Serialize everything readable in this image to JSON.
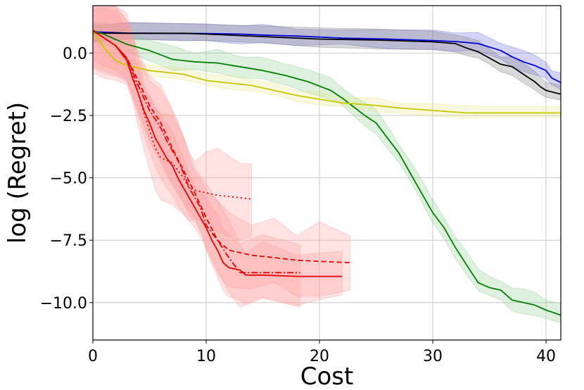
{
  "chart_data": {
    "type": "line",
    "title": "",
    "xlabel": "Cost",
    "ylabel": "log (Regret)",
    "xlim": [
      0,
      41.3
    ],
    "ylim": [
      -11.5,
      1.9
    ],
    "xticks": [
      0,
      10,
      20,
      30,
      40
    ],
    "yticks": [
      0.0,
      -2.5,
      -5.0,
      -7.5,
      -10.0
    ],
    "xtick_labels": [
      "0",
      "10",
      "20",
      "30",
      "40"
    ],
    "ytick_labels": [
      "0.0",
      "−2.5",
      "−5.0",
      "−7.5",
      "−10.0"
    ],
    "grid": true,
    "legend": null,
    "series": [
      {
        "name": "blue",
        "color": "#0000dd",
        "band_color": "#6666dd",
        "linestyle": "solid",
        "points": [
          [
            0,
            0.85
          ],
          [
            3,
            0.8
          ],
          [
            10,
            0.78
          ],
          [
            13,
            0.76
          ],
          [
            15,
            0.72
          ],
          [
            18,
            0.68
          ],
          [
            22,
            0.6
          ],
          [
            26,
            0.56
          ],
          [
            30,
            0.5
          ],
          [
            32,
            0.46
          ],
          [
            34,
            0.38
          ],
          [
            36,
            0.1
          ],
          [
            37,
            -0.15
          ],
          [
            38,
            -0.35
          ],
          [
            39,
            -0.5
          ],
          [
            40,
            -0.7
          ],
          [
            40.5,
            -1.0
          ],
          [
            41.3,
            -1.18
          ]
        ],
        "band": [
          0.4,
          0.45
        ]
      },
      {
        "name": "black",
        "color": "#000000",
        "band_color": "#777777",
        "linestyle": "solid",
        "points": [
          [
            0,
            0.8
          ],
          [
            3,
            0.79
          ],
          [
            8,
            0.79
          ],
          [
            10,
            0.76
          ],
          [
            15,
            0.66
          ],
          [
            20,
            0.56
          ],
          [
            25,
            0.52
          ],
          [
            30,
            0.45
          ],
          [
            32,
            0.38
          ],
          [
            33,
            0.2
          ],
          [
            34,
            0.05
          ],
          [
            35,
            -0.2
          ],
          [
            36,
            -0.45
          ],
          [
            37,
            -0.55
          ],
          [
            38,
            -0.85
          ],
          [
            39,
            -1.15
          ],
          [
            39.5,
            -1.35
          ],
          [
            40,
            -1.5
          ],
          [
            41.3,
            -1.65
          ]
        ],
        "band": [
          0.35,
          0.45
        ]
      },
      {
        "name": "green",
        "color": "#008000",
        "band_color": "#88cc88",
        "linestyle": "solid",
        "points": [
          [
            0,
            0.9
          ],
          [
            1,
            0.75
          ],
          [
            2,
            0.55
          ],
          [
            3,
            0.35
          ],
          [
            5,
            0.1
          ],
          [
            7,
            -0.25
          ],
          [
            9,
            -0.35
          ],
          [
            11,
            -0.4
          ],
          [
            13,
            -0.55
          ],
          [
            15,
            -0.7
          ],
          [
            17,
            -0.9
          ],
          [
            19,
            -1.15
          ],
          [
            21,
            -1.5
          ],
          [
            22,
            -1.8
          ],
          [
            23,
            -2.15
          ],
          [
            24,
            -2.5
          ],
          [
            25,
            -2.8
          ],
          [
            26,
            -3.4
          ],
          [
            27,
            -4.0
          ],
          [
            28,
            -4.8
          ],
          [
            29,
            -5.6
          ],
          [
            30,
            -6.4
          ],
          [
            31,
            -7.0
          ],
          [
            32,
            -7.8
          ],
          [
            33,
            -8.5
          ],
          [
            34,
            -9.2
          ],
          [
            35,
            -9.4
          ],
          [
            36,
            -9.5
          ],
          [
            37,
            -9.9
          ],
          [
            38,
            -10.0
          ],
          [
            39,
            -10.1
          ],
          [
            40,
            -10.3
          ],
          [
            41.3,
            -10.5
          ]
        ],
        "band": [
          0.45,
          0.55
        ]
      },
      {
        "name": "yellow",
        "color": "#c8c800",
        "band_color": "#e6e688",
        "linestyle": "solid",
        "points": [
          [
            0,
            0.9
          ],
          [
            1,
            0.2
          ],
          [
            2,
            -0.3
          ],
          [
            3,
            -0.5
          ],
          [
            5,
            -0.7
          ],
          [
            8,
            -0.85
          ],
          [
            10,
            -1.1
          ],
          [
            12,
            -1.2
          ],
          [
            14,
            -1.3
          ],
          [
            16,
            -1.5
          ],
          [
            18,
            -1.7
          ],
          [
            20,
            -1.85
          ],
          [
            22,
            -2.0
          ],
          [
            25,
            -2.1
          ],
          [
            27,
            -2.2
          ],
          [
            30,
            -2.3
          ],
          [
            33,
            -2.4
          ],
          [
            35,
            -2.4
          ],
          [
            41.3,
            -2.4
          ]
        ],
        "band": [
          0.25,
          0.3
        ]
      },
      {
        "name": "red-dotted",
        "color": "#ee0000",
        "band_color": "#ff9999",
        "linestyle": "dotted",
        "points": [
          [
            0,
            0.9
          ],
          [
            1,
            0.6
          ],
          [
            2,
            0.3
          ],
          [
            3,
            -0.2
          ],
          [
            3.5,
            -0.8
          ],
          [
            4,
            -1.6
          ],
          [
            4.5,
            -2.4
          ],
          [
            5,
            -3.1
          ],
          [
            5.5,
            -3.8
          ],
          [
            6,
            -4.2
          ],
          [
            7,
            -4.4
          ],
          [
            7.5,
            -4.7
          ],
          [
            8,
            -5.0
          ],
          [
            8.5,
            -5.4
          ],
          [
            9,
            -5.5
          ],
          [
            10,
            -5.6
          ],
          [
            11,
            -5.7
          ],
          [
            13,
            -5.8
          ],
          [
            14,
            -5.85
          ]
        ],
        "band": [
          1.7,
          1.9
        ]
      },
      {
        "name": "red-dashdot",
        "color": "#ee0000",
        "band_color": "#ff9999",
        "linestyle": "dashdot",
        "points": [
          [
            0,
            0.9
          ],
          [
            1,
            0.6
          ],
          [
            2,
            0.3
          ],
          [
            3,
            -0.2
          ],
          [
            4,
            -1.3
          ],
          [
            5,
            -2.3
          ],
          [
            6,
            -3.0
          ],
          [
            6.5,
            -3.5
          ],
          [
            7,
            -3.9
          ],
          [
            7.5,
            -4.3
          ],
          [
            8,
            -4.8
          ],
          [
            8.5,
            -5.4
          ],
          [
            9,
            -5.8
          ],
          [
            9.5,
            -6.2
          ],
          [
            10,
            -6.9
          ],
          [
            11,
            -7.5
          ],
          [
            12,
            -8.2
          ],
          [
            13,
            -8.8
          ],
          [
            15,
            -8.8
          ],
          [
            18.3,
            -8.8
          ]
        ],
        "band": [
          1.4,
          1.6
        ]
      },
      {
        "name": "red-dashed",
        "color": "#ee0000",
        "band_color": "#ff9999",
        "linestyle": "dashed",
        "points": [
          [
            0,
            0.9
          ],
          [
            1,
            0.6
          ],
          [
            2,
            0.3
          ],
          [
            3,
            -0.2
          ],
          [
            4,
            -1.1
          ],
          [
            5,
            -2.1
          ],
          [
            6,
            -2.8
          ],
          [
            7,
            -3.8
          ],
          [
            8,
            -4.7
          ],
          [
            9,
            -5.6
          ],
          [
            10,
            -6.6
          ],
          [
            11,
            -7.5
          ],
          [
            12,
            -7.9
          ],
          [
            14,
            -8.1
          ],
          [
            16,
            -8.2
          ],
          [
            18,
            -8.3
          ],
          [
            20,
            -8.35
          ],
          [
            22.7,
            -8.4
          ]
        ],
        "band": [
          1.5,
          1.6
        ]
      },
      {
        "name": "red-solid",
        "color": "#ee0000",
        "band_color": "#ff9999",
        "linestyle": "solid",
        "points": [
          [
            0,
            0.9
          ],
          [
            1,
            0.6
          ],
          [
            2,
            0.3
          ],
          [
            3,
            -0.3
          ],
          [
            3.5,
            -1.0
          ],
          [
            4,
            -1.6
          ],
          [
            4.5,
            -2.3
          ],
          [
            5,
            -2.8
          ],
          [
            5.5,
            -3.4
          ],
          [
            6,
            -3.8
          ],
          [
            6.5,
            -4.2
          ],
          [
            7,
            -4.5
          ],
          [
            7.5,
            -5.0
          ],
          [
            8,
            -5.4
          ],
          [
            8.5,
            -5.8
          ],
          [
            9,
            -6.2
          ],
          [
            9.5,
            -6.6
          ],
          [
            10,
            -7.0
          ],
          [
            10.5,
            -7.5
          ],
          [
            11,
            -7.9
          ],
          [
            11.5,
            -8.4
          ],
          [
            12,
            -8.6
          ],
          [
            13,
            -8.7
          ],
          [
            13.5,
            -8.9
          ],
          [
            15,
            -8.9
          ],
          [
            18,
            -8.95
          ],
          [
            22,
            -8.95
          ]
        ],
        "band": [
          1.2,
          1.4
        ]
      }
    ]
  }
}
